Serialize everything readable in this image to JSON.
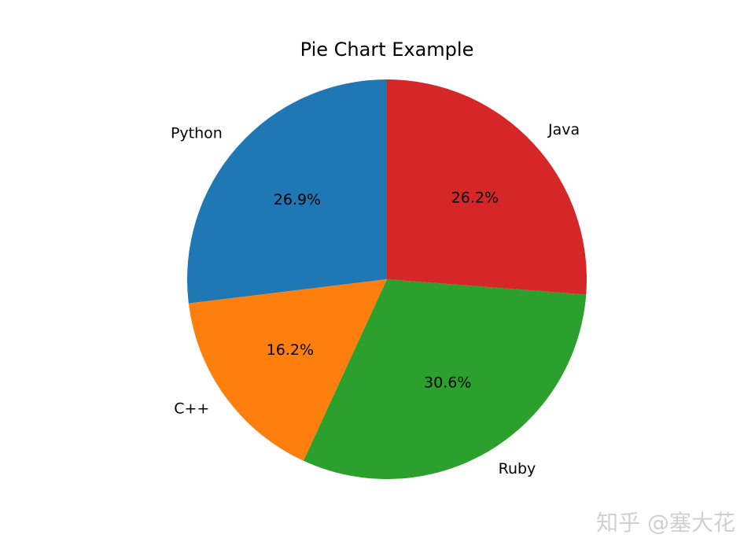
{
  "chart_data": {
    "type": "pie",
    "title": "Pie Chart Example",
    "categories": [
      "Python",
      "C++",
      "Ruby",
      "Java"
    ],
    "values": [
      26.9,
      16.2,
      30.6,
      26.2
    ],
    "value_labels": [
      "26.9%",
      "16.2%",
      "30.6%",
      "26.2%"
    ],
    "colors": [
      "#1f77b4",
      "#ff7f0e",
      "#2ca02c",
      "#d62728"
    ],
    "start_angle_deg": 90,
    "direction": "counterclockwise"
  },
  "watermark": "知乎 @塞大花"
}
